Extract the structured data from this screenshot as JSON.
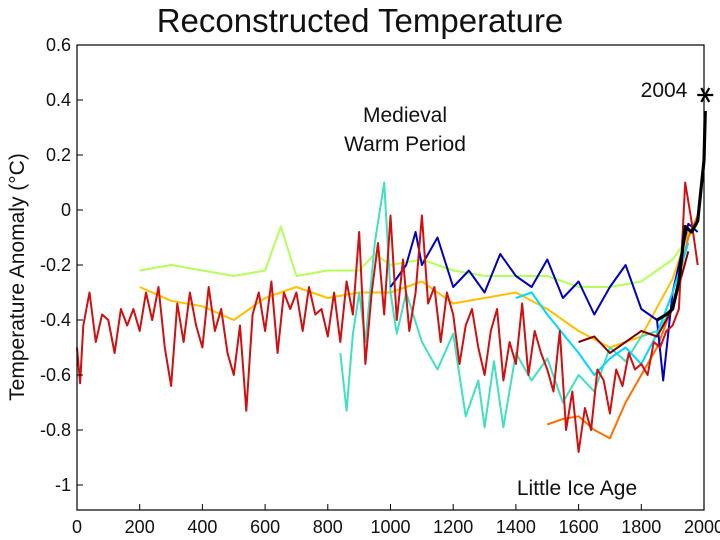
{
  "chart_data": {
    "type": "line",
    "title": "Reconstructed Temperature",
    "xlabel": "",
    "ylabel": "Temperature Anomaly (°C)",
    "xlim": [
      0,
      2000
    ],
    "ylim": [
      -1.1,
      0.6
    ],
    "xticks": [
      0,
      200,
      400,
      600,
      800,
      1000,
      1200,
      1400,
      1600,
      1800,
      2000
    ],
    "yticks": [
      0.6,
      0.4,
      0.2,
      0,
      -0.2,
      -0.4,
      -0.6,
      -0.8,
      -1
    ],
    "grid": false,
    "annotations": {
      "medieval": [
        "Medieval",
        "Warm Period"
      ],
      "little_ice_age": "Little Ice Age",
      "marker": "2004",
      "marker_point": [
        2004,
        0.4
      ]
    },
    "series": [
      {
        "color": "#b5ff5a",
        "x": [
          200,
          300,
          400,
          500,
          600,
          650,
          700,
          800,
          900,
          950,
          1000,
          1100,
          1200,
          1300,
          1400,
          1500,
          1600,
          1700,
          1800,
          1900,
          1950,
          1980
        ],
        "y": [
          -0.22,
          -0.2,
          -0.22,
          -0.24,
          -0.22,
          -0.06,
          -0.24,
          -0.22,
          -0.22,
          -0.16,
          -0.2,
          -0.18,
          -0.22,
          -0.24,
          -0.24,
          -0.24,
          -0.28,
          -0.28,
          -0.26,
          -0.18,
          -0.1,
          -0.05
        ]
      },
      {
        "color": "#ffc000",
        "x": [
          200,
          300,
          400,
          500,
          600,
          700,
          800,
          900,
          1000,
          1100,
          1200,
          1300,
          1400,
          1500,
          1600,
          1700,
          1800,
          1900,
          1950
        ],
        "y": [
          -0.28,
          -0.33,
          -0.35,
          -0.4,
          -0.32,
          -0.28,
          -0.32,
          -0.3,
          -0.3,
          -0.26,
          -0.34,
          -0.32,
          -0.3,
          -0.36,
          -0.44,
          -0.5,
          -0.46,
          -0.25,
          -0.08
        ]
      },
      {
        "color": "#40e0c0",
        "x": [
          840,
          860,
          880,
          900,
          920,
          950,
          980,
          1000,
          1020,
          1050,
          1100,
          1150,
          1200,
          1240,
          1280,
          1300,
          1330,
          1360,
          1400,
          1450,
          1500,
          1550,
          1600,
          1650,
          1700,
          1750,
          1800,
          1850,
          1900
        ],
        "y": [
          -0.52,
          -0.73,
          -0.45,
          -0.3,
          -0.48,
          -0.12,
          0.1,
          -0.3,
          -0.45,
          -0.3,
          -0.48,
          -0.58,
          -0.45,
          -0.75,
          -0.62,
          -0.79,
          -0.55,
          -0.79,
          -0.52,
          -0.62,
          -0.54,
          -0.7,
          -0.6,
          -0.66,
          -0.5,
          -0.55,
          -0.46,
          -0.44,
          -0.36
        ]
      },
      {
        "color": "#ff7000",
        "x": [
          1500,
          1550,
          1600,
          1650,
          1700,
          1750,
          1800,
          1850,
          1900,
          1950,
          1980
        ],
        "y": [
          -0.78,
          -0.76,
          -0.75,
          -0.8,
          -0.83,
          -0.7,
          -0.6,
          -0.5,
          -0.35,
          -0.1,
          -0.02
        ]
      },
      {
        "color": "#0000c0",
        "x": [
          1000,
          1050,
          1080,
          1100,
          1150,
          1200,
          1250,
          1300,
          1350,
          1400,
          1450,
          1500,
          1550,
          1600,
          1650,
          1700,
          1750,
          1800,
          1850,
          1870,
          1900,
          1950,
          1980
        ],
        "y": [
          -0.28,
          -0.2,
          -0.08,
          -0.2,
          -0.1,
          -0.28,
          -0.22,
          -0.3,
          -0.16,
          -0.24,
          -0.28,
          -0.18,
          -0.32,
          -0.26,
          -0.38,
          -0.28,
          -0.2,
          -0.36,
          -0.4,
          -0.62,
          -0.3,
          -0.05,
          -0.08
        ]
      },
      {
        "color": "#00d8ff",
        "x": [
          1400,
          1450,
          1500,
          1550,
          1600,
          1650,
          1700,
          1750,
          1800,
          1850,
          1900,
          1950
        ],
        "y": [
          -0.32,
          -0.3,
          -0.38,
          -0.45,
          -0.52,
          -0.6,
          -0.54,
          -0.5,
          -0.56,
          -0.45,
          -0.3,
          -0.12
        ]
      },
      {
        "color": "#800000",
        "x": [
          1600,
          1650,
          1700,
          1750,
          1800,
          1850,
          1900,
          1950
        ],
        "y": [
          -0.48,
          -0.46,
          -0.52,
          -0.48,
          -0.44,
          -0.46,
          -0.36,
          -0.15
        ]
      },
      {
        "color": "#d01010",
        "x": [
          0,
          10,
          20,
          40,
          60,
          80,
          100,
          120,
          140,
          160,
          180,
          200,
          220,
          240,
          260,
          280,
          300,
          320,
          340,
          360,
          380,
          400,
          420,
          440,
          460,
          480,
          500,
          520,
          540,
          560,
          580,
          600,
          620,
          640,
          660,
          680,
          700,
          720,
          740,
          760,
          780,
          800,
          820,
          840,
          860,
          880,
          900,
          920,
          940,
          960,
          980,
          1000,
          1020,
          1040,
          1060,
          1080,
          1100,
          1120,
          1140,
          1160,
          1180,
          1200,
          1220,
          1240,
          1260,
          1280,
          1300,
          1320,
          1340,
          1360,
          1380,
          1400,
          1420,
          1440,
          1460,
          1480,
          1500,
          1520,
          1540,
          1560,
          1580,
          1600,
          1620,
          1640,
          1660,
          1680,
          1700,
          1720,
          1740,
          1760,
          1780,
          1800,
          1820,
          1840,
          1860,
          1880,
          1900,
          1920,
          1940,
          1960,
          1980
        ],
        "y": [
          -0.5,
          -0.63,
          -0.42,
          -0.3,
          -0.48,
          -0.38,
          -0.4,
          -0.52,
          -0.36,
          -0.42,
          -0.36,
          -0.44,
          -0.3,
          -0.4,
          -0.28,
          -0.5,
          -0.64,
          -0.34,
          -0.48,
          -0.3,
          -0.42,
          -0.5,
          -0.28,
          -0.44,
          -0.36,
          -0.52,
          -0.6,
          -0.42,
          -0.73,
          -0.38,
          -0.3,
          -0.44,
          -0.26,
          -0.52,
          -0.3,
          -0.36,
          -0.3,
          -0.44,
          -0.28,
          -0.38,
          -0.36,
          -0.46,
          -0.3,
          -0.48,
          -0.26,
          -0.38,
          -0.08,
          -0.56,
          -0.3,
          -0.12,
          -0.38,
          -0.02,
          -0.4,
          -0.18,
          -0.44,
          -0.3,
          -0.02,
          -0.34,
          -0.28,
          -0.48,
          -0.3,
          -0.38,
          -0.56,
          -0.42,
          -0.36,
          -0.5,
          -0.6,
          -0.44,
          -0.36,
          -0.62,
          -0.48,
          -0.56,
          -0.34,
          -0.6,
          -0.44,
          -0.52,
          -0.58,
          -0.66,
          -0.44,
          -0.8,
          -0.66,
          -0.88,
          -0.72,
          -0.8,
          -0.58,
          -0.62,
          -0.74,
          -0.58,
          -0.64,
          -0.52,
          -0.58,
          -0.56,
          -0.6,
          -0.48,
          -0.5,
          -0.44,
          -0.42,
          -0.36,
          0.1,
          -0.04,
          -0.2
        ]
      },
      {
        "color": "#000000",
        "x": [
          1850,
          1880,
          1900,
          1920,
          1940,
          1960,
          1980,
          2000,
          2004
        ],
        "y": [
          -0.4,
          -0.38,
          -0.36,
          -0.26,
          -0.06,
          -0.08,
          -0.04,
          0.18,
          0.36
        ],
        "width": 3.2
      }
    ]
  }
}
